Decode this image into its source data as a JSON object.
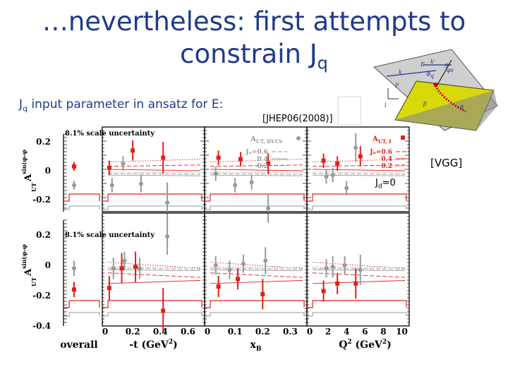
{
  "slide": {
    "title_line1": "…nevertheless: first attempts to",
    "title_line2_main": "constrain J",
    "title_line2_sub": "q",
    "intro_main": "J",
    "intro_sub": "q",
    "intro_rest": " input parameter in ansatz for E:",
    "ref_jhep": "[JHEP06(2008)]",
    "ref_vgg": "[VGG]",
    "jd_label": "J",
    "jd_sub": "d",
    "jd_rest": "=0"
  },
  "colors": {
    "title": "#1f3a8c",
    "red": "#e0201c",
    "gray": "#999999",
    "dark": "#000000"
  },
  "diagram_labels": [
    "k",
    "k'",
    "E",
    "Φ",
    "S",
    "β",
    "θ",
    "φs",
    "q",
    "p",
    "l"
  ],
  "chart_data": [
    {
      "type": "scatter",
      "panel": "sin(φ-φs) amplitude",
      "ylabel_main": "A",
      "ylabel_sup": "sin(φ-φ",
      "ylabel_sub": "UT",
      "yticks": [
        "0.2",
        "0",
        "-0.2"
      ],
      "ylim": [
        -0.3,
        0.3
      ],
      "annotation": "8.1% scale uncertainty",
      "legend_left_title": "A",
      "legend_left_sub": "UT, DVCS",
      "legend_left_entries": [
        "Jₐ=0.6",
        "0.4",
        "0.2"
      ],
      "legend_right_title": "A",
      "legend_right_sub": "UT, I",
      "legend_right_entries": [
        "Jₐ=0.6",
        "0.4",
        "0.2"
      ],
      "subplots": [
        {
          "x": "overall",
          "red": [
            {
              "x": 0,
              "y": 0.03,
              "err": 0.03
            }
          ],
          "gray": [
            {
              "x": 0,
              "y": -0.1,
              "err": 0.03
            }
          ]
        },
        {
          "x": "-t",
          "red": [
            {
              "x": 0.03,
              "y": 0.02,
              "err": 0.05
            },
            {
              "x": 0.2,
              "y": 0.14,
              "err": 0.07
            },
            {
              "x": 0.42,
              "y": 0.09,
              "err": 0.11
            }
          ],
          "gray": [
            {
              "x": 0.05,
              "y": -0.1,
              "err": 0.05
            },
            {
              "x": 0.13,
              "y": 0.05,
              "err": 0.05
            },
            {
              "x": 0.26,
              "y": -0.09,
              "err": 0.06
            },
            {
              "x": 0.45,
              "y": -0.22,
              "err": 0.14
            }
          ]
        },
        {
          "x": "xB",
          "red": [
            {
              "x": 0.04,
              "y": 0.09,
              "err": 0.05
            },
            {
              "x": 0.12,
              "y": 0.08,
              "err": 0.05
            },
            {
              "x": 0.22,
              "y": 0.05,
              "err": 0.07
            }
          ],
          "gray": [
            {
              "x": 0.03,
              "y": -0.02,
              "err": 0.05
            },
            {
              "x": 0.1,
              "y": -0.1,
              "err": 0.05
            },
            {
              "x": 0.16,
              "y": -0.08,
              "err": 0.05
            },
            {
              "x": 0.22,
              "y": -0.26,
              "err": 0.1
            }
          ]
        },
        {
          "x": "Q2",
          "red": [
            {
              "x": 1.5,
              "y": 0.07,
              "err": 0.05
            },
            {
              "x": 3,
              "y": 0.05,
              "err": 0.05
            },
            {
              "x": 5.5,
              "y": 0.1,
              "err": 0.07
            }
          ],
          "gray": [
            {
              "x": 1.8,
              "y": -0.04,
              "err": 0.05
            },
            {
              "x": 2.5,
              "y": -0.03,
              "err": 0.05
            },
            {
              "x": 4,
              "y": -0.12,
              "err": 0.05
            },
            {
              "x": 5,
              "y": 0.16,
              "err": 0.1
            }
          ]
        }
      ]
    },
    {
      "type": "scatter",
      "panel": "sin(φ-φs)cosφ amplitude",
      "ylabel_main": "A",
      "ylabel_sup": "sin(φ-φ",
      "ylabel_sub": "UT",
      "yticks": [
        "0.2",
        "0",
        "-0.2",
        "-0.4"
      ],
      "ylim": [
        -0.5,
        0.35
      ],
      "annotation": "8.1% scale uncertainty",
      "subplots": [
        {
          "x": "overall",
          "red": [
            {
              "x": 0,
              "y": -0.16,
              "err": 0.05
            }
          ],
          "gray": [
            {
              "x": 0,
              "y": -0.02,
              "err": 0.05
            }
          ]
        },
        {
          "x": "-t",
          "red": [
            {
              "x": 0.03,
              "y": -0.15,
              "err": 0.08
            },
            {
              "x": 0.12,
              "y": -0.02,
              "err": 0.1
            },
            {
              "x": 0.22,
              "y": -0.01,
              "err": 0.1
            },
            {
              "x": 0.42,
              "y": -0.3,
              "err": 0.15
            }
          ],
          "gray": [
            {
              "x": 0.06,
              "y": -0.02,
              "err": 0.07
            },
            {
              "x": 0.14,
              "y": 0.03,
              "err": 0.06
            },
            {
              "x": 0.25,
              "y": -0.02,
              "err": 0.07
            },
            {
              "x": 0.45,
              "y": 0.19,
              "err": 0.12
            }
          ]
        },
        {
          "x": "xB",
          "red": [
            {
              "x": 0.04,
              "y": -0.14,
              "err": 0.07
            },
            {
              "x": 0.11,
              "y": -0.09,
              "err": 0.07
            },
            {
              "x": 0.2,
              "y": -0.19,
              "err": 0.1
            }
          ],
          "gray": [
            {
              "x": 0.03,
              "y": 0.0,
              "err": 0.06
            },
            {
              "x": 0.08,
              "y": -0.03,
              "err": 0.06
            },
            {
              "x": 0.13,
              "y": 0.01,
              "err": 0.06
            },
            {
              "x": 0.21,
              "y": 0.03,
              "err": 0.09
            }
          ]
        },
        {
          "x": "Q2",
          "red": [
            {
              "x": 1.5,
              "y": -0.17,
              "err": 0.07
            },
            {
              "x": 3,
              "y": -0.12,
              "err": 0.07
            },
            {
              "x": 5,
              "y": -0.12,
              "err": 0.1
            }
          ],
          "gray": [
            {
              "x": 1.8,
              "y": -0.02,
              "err": 0.06
            },
            {
              "x": 2.5,
              "y": -0.01,
              "err": 0.07
            },
            {
              "x": 3.8,
              "y": 0.0,
              "err": 0.06
            },
            {
              "x": 5.5,
              "y": -0.03,
              "err": 0.1
            }
          ]
        }
      ]
    }
  ],
  "x_axes": [
    {
      "label": "overall",
      "ticks": []
    },
    {
      "label": "-t (GeV",
      "label_sup": "2",
      "label_end": ")",
      "ticks": [
        "0",
        "0.2",
        "0.4",
        "0.6"
      ],
      "range": [
        0,
        0.7
      ]
    },
    {
      "label": "x",
      "label_sub": "B",
      "ticks": [
        "0",
        "0.1",
        "0.2",
        "0.3"
      ],
      "range": [
        0,
        0.35
      ]
    },
    {
      "label": "Q",
      "label_sup": "2",
      "label_end": " (GeV",
      "label_sup2": "2",
      "label_end2": ")",
      "ticks": [
        "0",
        "2",
        "4",
        "6",
        "8",
        "10"
      ],
      "range": [
        0,
        10.5
      ]
    }
  ]
}
